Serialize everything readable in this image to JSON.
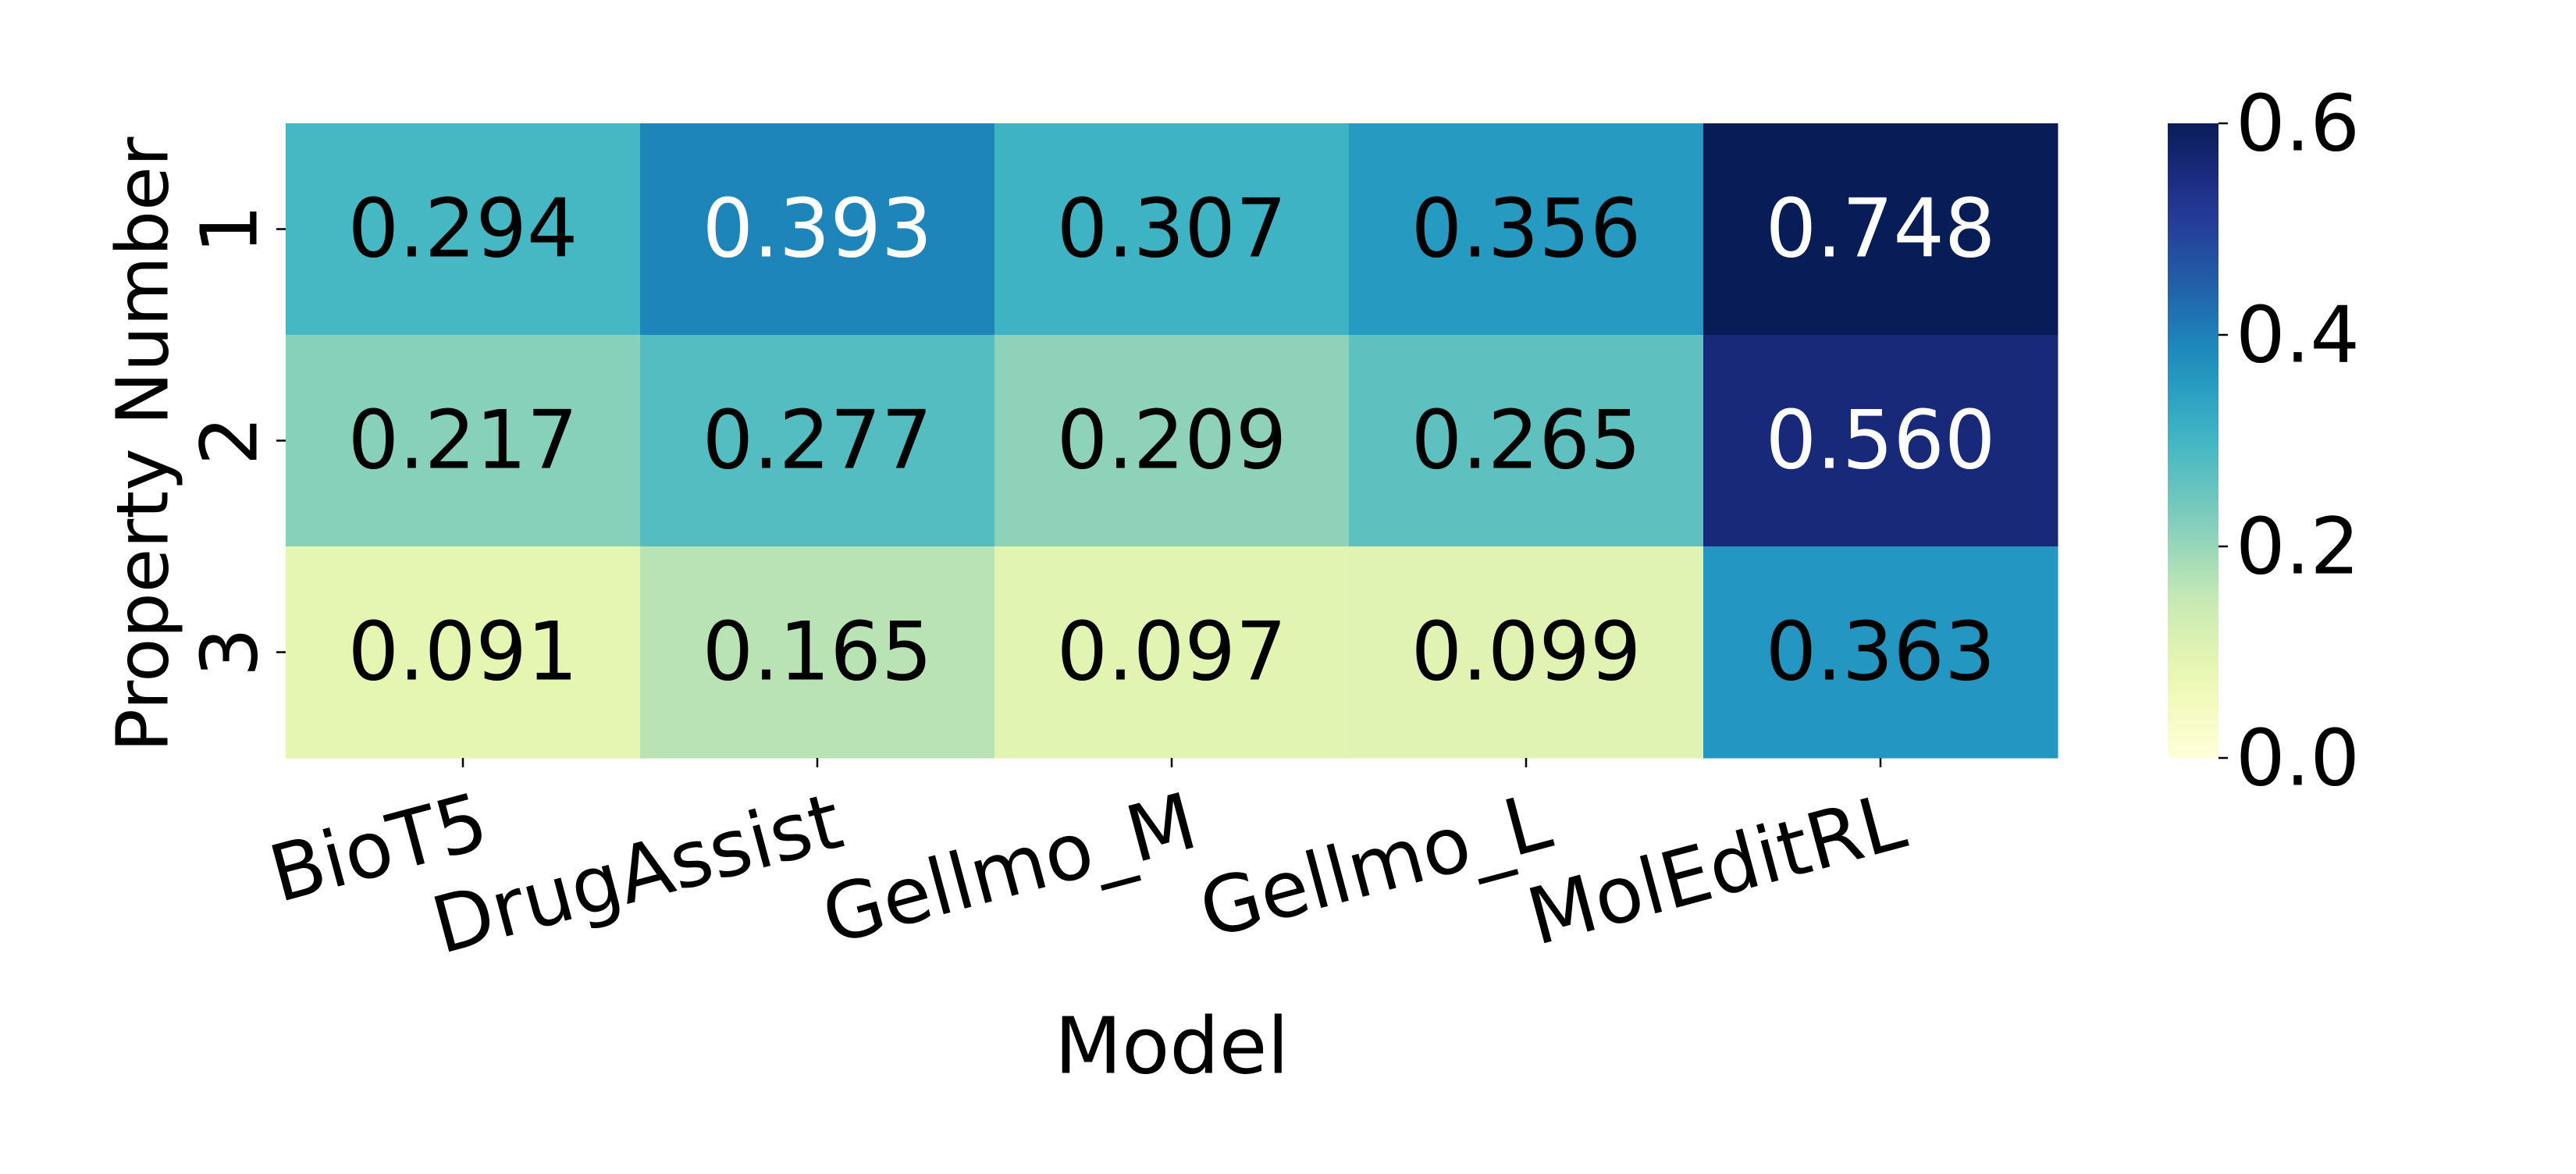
{
  "chart_data": {
    "type": "heatmap",
    "title": "",
    "xlabel": "Model",
    "ylabel": "Property Number",
    "x_categories": [
      "BioT5",
      "DrugAssist",
      "Gellmo_M",
      "Gellmo_L",
      "MolEditRL"
    ],
    "y_categories": [
      "1",
      "2",
      "3"
    ],
    "values": [
      [
        0.294,
        0.393,
        0.307,
        0.356,
        0.748
      ],
      [
        0.217,
        0.277,
        0.209,
        0.265,
        0.56
      ],
      [
        0.091,
        0.165,
        0.097,
        0.099,
        0.363
      ]
    ],
    "value_labels": [
      [
        "0.294",
        "0.393",
        "0.307",
        "0.356",
        "0.748"
      ],
      [
        "0.217",
        "0.277",
        "0.209",
        "0.265",
        "0.560"
      ],
      [
        "0.091",
        "0.165",
        "0.097",
        "0.099",
        "0.363"
      ]
    ],
    "colormap": "YlGnBu",
    "color_range": [
      0.0,
      0.6
    ],
    "colorbar_ticks": [
      "0.0",
      "0.2",
      "0.4",
      "0.6"
    ],
    "colorbar_tick_values": [
      0.0,
      0.2,
      0.4,
      0.6
    ],
    "colorbar_placement": "right",
    "grid": false,
    "x_tick_rotation": "slanted"
  }
}
